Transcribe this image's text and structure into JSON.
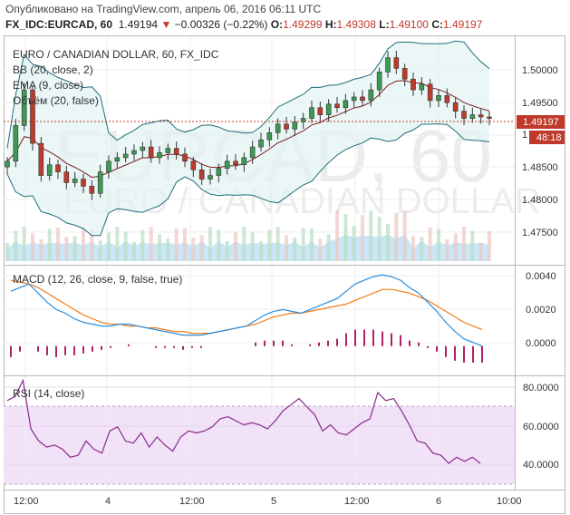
{
  "header": {
    "published": "Опубликовано на TradingView.com, апрель 06, 2016 06:11 UTC",
    "symbol": "FX_IDC:EURCAD, 60",
    "price": "1.49194",
    "change": "−0.00326 (−0.22%)",
    "o_label": "O:",
    "o_value": "1.49299",
    "h_label": "H:",
    "h_value": "1.49308",
    "l_label": "L:",
    "l_value": "1.49100",
    "c_label": "C:",
    "c_value": "1.49197"
  },
  "main_pane": {
    "title": "EURO / CANADIAN DOLLAR, 60, FX_IDC",
    "indicators": [
      "BB (20, close, 2)",
      "EMA (9, close)",
      "Объём (20, false)"
    ],
    "watermark_symbol": "EURCAD, 60",
    "watermark_name": "EURO / CANADIAN DOLLAR",
    "price_ticks": [
      "1.50000",
      "1.49500",
      "1.49197",
      "1.48500",
      "1.48000",
      "1.47500"
    ],
    "current_price": "1.49197",
    "countdown": "48:18",
    "partial_tick": "1"
  },
  "macd_pane": {
    "title": "MACD (12, 26, close, 9, false, true)",
    "ticks": [
      "0.0040",
      "0.0020",
      "0.0000"
    ]
  },
  "rsi_pane": {
    "title": "RSI (14, close)",
    "ticks": [
      "80.0000",
      "60.0000",
      "40.0000"
    ]
  },
  "time_axis": {
    "labels": [
      "12:00",
      "4",
      "12:00",
      "5",
      "12:00",
      "6",
      "10:00"
    ]
  },
  "colors": {
    "up": "#3c9a54",
    "down": "#c0392b",
    "bb": "#1f6e7a",
    "ema": "#7a1f1f",
    "volume": "#a6d6f2",
    "macd": "#2a8fe0",
    "signal": "#f07d1a",
    "histogram": "#b0206a",
    "rsi": "#8a2c8a",
    "rsi_band": "#f1e2f8"
  },
  "chart_data": [
    {
      "type": "candlestick",
      "title": "EURO / CANADIAN DOLLAR, 60, FX_IDC",
      "ylim": [
        1.4715,
        1.5035
      ],
      "close": [
        1.486,
        1.491,
        1.496,
        1.4885,
        1.484,
        1.4855,
        1.4845,
        1.483,
        1.4835,
        1.4825,
        1.4815,
        1.4845,
        1.486,
        1.4865,
        1.487,
        1.4875,
        1.488,
        1.4865,
        1.4872,
        1.4878,
        1.487,
        1.486,
        1.4848,
        1.4835,
        1.484,
        1.485,
        1.486,
        1.4855,
        1.4865,
        1.488,
        1.489,
        1.49,
        1.4912,
        1.4905,
        1.4915,
        1.492,
        1.4935,
        1.4925,
        1.494,
        1.4935,
        1.4945,
        1.495,
        1.4945,
        1.496,
        1.4985,
        1.5005,
        1.499,
        1.4975,
        1.496,
        1.4968,
        1.4945,
        1.4952,
        1.4942,
        1.493,
        1.492,
        1.4925,
        1.4922,
        1.492
      ]
    },
    {
      "type": "line",
      "title": "MACD (12, 26, close, 9, false, true)",
      "ylim": [
        -0.0016,
        0.0044
      ],
      "series": [
        {
          "name": "MACD",
          "values": [
            0.003,
            0.0032,
            0.0034,
            0.0029,
            0.0024,
            0.002,
            0.0018,
            0.0015,
            0.0013,
            0.0012,
            0.0011,
            0.0011,
            0.0012,
            0.0012,
            0.0011,
            0.001,
            0.0009,
            0.0008,
            0.0007,
            0.0006,
            0.0006,
            0.0006,
            0.0007,
            0.0008,
            0.0009,
            0.001,
            0.0011,
            0.0014,
            0.0017,
            0.0019,
            0.002,
            0.0019,
            0.0018,
            0.002,
            0.0022,
            0.0024,
            0.0026,
            0.003,
            0.0034,
            0.0036,
            0.0038,
            0.0039,
            0.0038,
            0.0036,
            0.0032,
            0.0029,
            0.0024,
            0.0019,
            0.0013,
            0.0008,
            0.0004,
            0.0002,
            0.0
          ]
        },
        {
          "name": "Signal",
          "values": [
            0.0036,
            0.0035,
            0.0034,
            0.0032,
            0.0029,
            0.0026,
            0.0023,
            0.002,
            0.0017,
            0.0015,
            0.0013,
            0.0012,
            0.0012,
            0.0011,
            0.0011,
            0.001,
            0.001,
            0.0009,
            0.0008,
            0.0008,
            0.0007,
            0.0007,
            0.0007,
            0.0008,
            0.0009,
            0.001,
            0.0011,
            0.0012,
            0.0014,
            0.0016,
            0.0017,
            0.0018,
            0.0018,
            0.0019,
            0.002,
            0.0021,
            0.0022,
            0.0023,
            0.0025,
            0.0027,
            0.0029,
            0.0031,
            0.0031,
            0.003,
            0.0029,
            0.0027,
            0.0025,
            0.0022,
            0.0019,
            0.0016,
            0.0013,
            0.0011,
            0.0009
          ]
        },
        {
          "name": "Histogram",
          "values": [
            -0.0006,
            -0.0003,
            0.0,
            -0.0003,
            -0.0005,
            -0.0006,
            -0.0005,
            -0.0005,
            -0.0004,
            -0.0003,
            -0.0002,
            -0.0001,
            0.0,
            0.0001,
            0.0,
            0.0,
            -0.0001,
            -0.0001,
            -0.0001,
            -0.0002,
            -0.0001,
            -0.0001,
            0.0,
            0.0,
            0.0,
            0.0,
            0.0,
            0.0002,
            0.0003,
            0.0003,
            0.0003,
            0.0001,
            0.0,
            0.0001,
            0.0002,
            0.0003,
            0.0004,
            0.0007,
            0.0009,
            0.0009,
            0.0009,
            0.0008,
            0.0007,
            0.0006,
            0.0003,
            0.0002,
            -0.0001,
            -0.0003,
            -0.0006,
            -0.0008,
            -0.0009,
            -0.0009,
            -0.0009
          ]
        }
      ]
    },
    {
      "type": "line",
      "title": "RSI (14, close)",
      "ylim": [
        28,
        84
      ],
      "band": [
        30,
        70
      ],
      "series": [
        {
          "name": "RSI",
          "values": [
            72,
            74,
            82,
            58,
            52,
            49,
            50,
            48,
            44,
            45,
            52,
            48,
            46,
            57,
            59,
            52,
            51,
            56,
            49,
            54,
            50,
            47,
            54,
            57,
            56,
            57,
            59,
            63,
            64,
            62,
            60,
            61,
            60,
            58,
            62,
            67,
            70,
            73,
            69,
            65,
            57,
            60,
            56,
            55,
            58,
            61,
            63,
            76,
            72,
            73,
            67,
            60,
            52,
            51,
            46,
            45,
            41,
            44,
            42,
            44,
            41
          ]
        }
      ]
    }
  ]
}
